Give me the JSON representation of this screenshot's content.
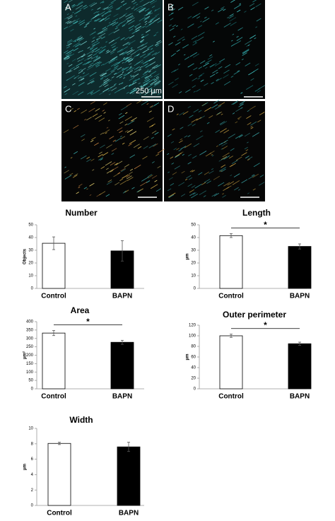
{
  "image_panels": {
    "labels": [
      "A",
      "B",
      "C",
      "D"
    ],
    "scale_label": "250 μm"
  },
  "chart_data": [
    {
      "type": "bar",
      "title": "Number",
      "ylabel": "Objects",
      "categories": [
        "Control",
        "BAPN"
      ],
      "values": [
        35.5,
        29.5
      ],
      "errors": [
        5,
        8
      ],
      "colors": [
        "#ffffff",
        "#000000"
      ],
      "ylim": [
        0,
        50
      ],
      "yticks": [
        0,
        10,
        20,
        30,
        40,
        50
      ]
    },
    {
      "type": "bar",
      "title": "Length",
      "ylabel": "μm",
      "categories": [
        "Control",
        "BAPN"
      ],
      "values": [
        41.5,
        33
      ],
      "errors": [
        1.5,
        2
      ],
      "colors": [
        "#ffffff",
        "#000000"
      ],
      "ylim": [
        0,
        50
      ],
      "yticks": [
        0,
        10,
        20,
        30,
        40,
        50
      ],
      "annotation": "*"
    },
    {
      "type": "bar",
      "title": "Area",
      "ylabel": "μm²",
      "categories": [
        "Control",
        "BAPN"
      ],
      "values": [
        332,
        277
      ],
      "errors": [
        15,
        12
      ],
      "colors": [
        "#ffffff",
        "#000000"
      ],
      "ylim": [
        0,
        400
      ],
      "yticks": [
        0,
        50,
        100,
        150,
        200,
        250,
        300,
        350,
        400
      ],
      "annotation": "*"
    },
    {
      "type": "bar",
      "title": "Outer perimeter",
      "ylabel": "μm",
      "categories": [
        "Control",
        "BAPN"
      ],
      "values": [
        100,
        85
      ],
      "errors": [
        3,
        3
      ],
      "colors": [
        "#ffffff",
        "#000000"
      ],
      "ylim": [
        0,
        120
      ],
      "yticks": [
        0,
        20,
        40,
        60,
        80,
        100,
        120
      ],
      "annotation": "*"
    },
    {
      "type": "bar",
      "title": "Width",
      "ylabel": "μm",
      "categories": [
        "Control",
        "BAPN"
      ],
      "values": [
        8.05,
        7.6
      ],
      "errors": [
        0.15,
        0.6
      ],
      "colors": [
        "#ffffff",
        "#000000"
      ],
      "ylim": [
        0,
        10
      ],
      "yticks": [
        0,
        2,
        4,
        6,
        8,
        10
      ]
    }
  ]
}
